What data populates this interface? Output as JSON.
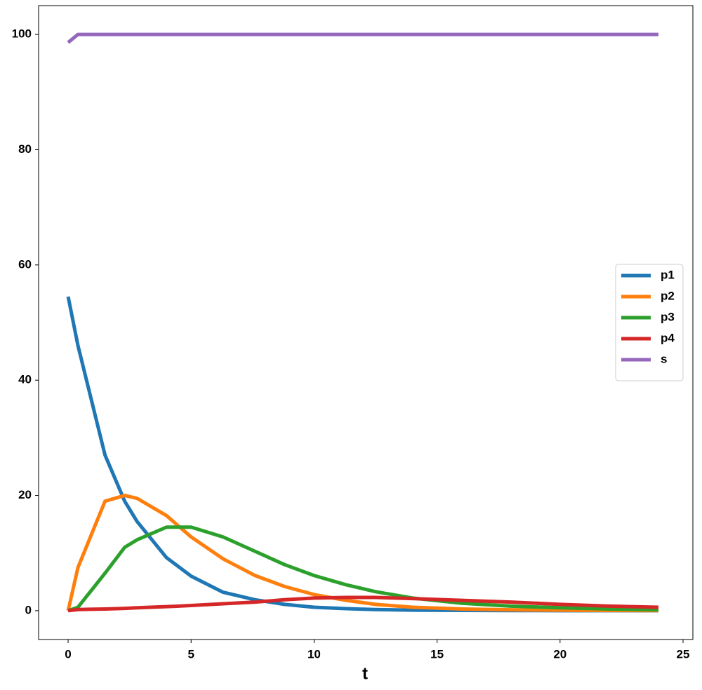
{
  "chart_data": {
    "type": "line",
    "x_label": "t",
    "x": [
      0,
      0.4,
      1.5,
      2.3,
      2.8,
      4.0,
      5.0,
      6.3,
      7.6,
      8.8,
      10,
      11.3,
      12.5,
      14,
      16,
      18,
      20,
      22,
      24
    ],
    "series": [
      {
        "name": "p1",
        "color": "#1f77b4",
        "values": [
          54.5,
          46,
          27,
          19,
          15.5,
          9.2,
          6,
          3.2,
          1.9,
          1.1,
          0.6,
          0.35,
          0.2,
          0.1,
          0.05,
          0.02,
          0.01,
          0,
          0
        ]
      },
      {
        "name": "p2",
        "color": "#ff7f0e",
        "values": [
          0,
          7.5,
          19,
          20,
          19.5,
          16.5,
          12.8,
          9,
          6.1,
          4.2,
          2.8,
          1.8,
          1.1,
          0.6,
          0.3,
          0.15,
          0.08,
          0.04,
          0.02
        ]
      },
      {
        "name": "p3",
        "color": "#2ca02c",
        "values": [
          0,
          0.6,
          6.5,
          11,
          12.3,
          14.5,
          14.5,
          12.8,
          10.3,
          8,
          6.1,
          4.5,
          3.3,
          2.2,
          1.3,
          0.8,
          0.5,
          0.3,
          0.15
        ]
      },
      {
        "name": "p4",
        "color": "#d62728",
        "values": [
          0,
          0.2,
          0.3,
          0.4,
          0.5,
          0.7,
          0.9,
          1.2,
          1.5,
          1.9,
          2.2,
          2.3,
          2.3,
          2.1,
          1.8,
          1.5,
          1.1,
          0.8,
          0.6
        ]
      },
      {
        "name": "s",
        "color": "#9467bd",
        "values": [
          98.6,
          100,
          100,
          100,
          100,
          100,
          100,
          100,
          100,
          100,
          100,
          100,
          100,
          100,
          100,
          100,
          100,
          100,
          100
        ]
      }
    ],
    "xlim": [
      -1.2,
      25.4
    ],
    "ylim": [
      -5,
      105
    ],
    "xticks": [
      0,
      5,
      10,
      15,
      20,
      25
    ],
    "yticks": [
      0,
      20,
      40,
      60,
      80,
      100
    ],
    "legend": "center right"
  }
}
